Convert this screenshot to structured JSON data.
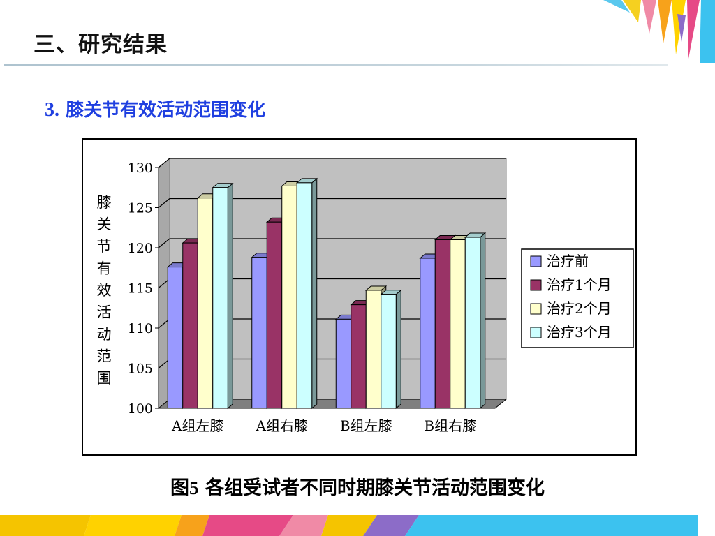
{
  "slide": {
    "title": "三、研究结果",
    "subtitle_number": "3.",
    "subtitle_text": "膝关节有效活动范围变化",
    "caption_number": "图5",
    "caption_text": "各组受试者不同时期膝关节活动范围变化"
  },
  "chart_data": {
    "type": "bar",
    "variant": "3d-clustered",
    "title": "",
    "xlabel": "",
    "ylabel": "膝关节有效活动范围",
    "ylim": [
      100,
      130
    ],
    "yticks": [
      "100",
      "105",
      "110",
      "115",
      "120",
      "125",
      "130"
    ],
    "categories": [
      "A组左膝",
      "A组右膝",
      "B组左膝",
      "B组右膝"
    ],
    "series": [
      {
        "name": "治疗前",
        "values": [
          117.6,
          118.8,
          111.1,
          118.7
        ],
        "color": "#9999ff"
      },
      {
        "name": "治疗1个月",
        "values": [
          120.6,
          123.2,
          112.9,
          121.0
        ],
        "color": "#993366"
      },
      {
        "name": "治疗2个月",
        "values": [
          126.2,
          127.7,
          114.7,
          121.0
        ],
        "color": "#ffffcc"
      },
      {
        "name": "治疗3个月",
        "values": [
          127.5,
          128.1,
          114.2,
          121.3
        ],
        "color": "#ccffff"
      }
    ],
    "grid": true,
    "plot_background": "#c0c0c0",
    "legend_position": "right"
  }
}
